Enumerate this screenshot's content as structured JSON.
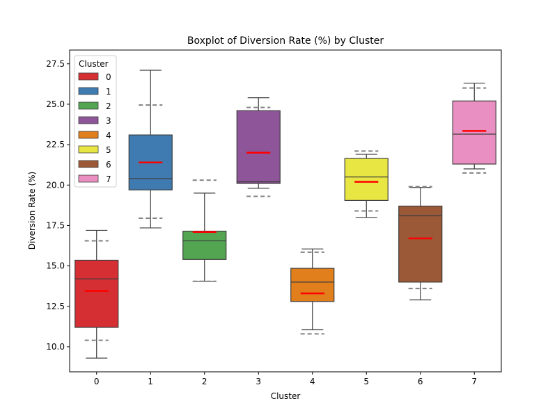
{
  "chart_data": {
    "type": "boxplot",
    "title": "Boxplot of Diversion Rate (%) by Cluster",
    "xlabel": "Cluster",
    "ylabel": "Diversion Rate (%)",
    "ylim": [
      8.45,
      28.35
    ],
    "yticks": [
      10.0,
      12.5,
      15.0,
      17.5,
      20.0,
      22.5,
      25.0,
      27.5
    ],
    "ytick_labels": [
      "10.0",
      "12.5",
      "15.0",
      "17.5",
      "20.0",
      "22.5",
      "25.0",
      "27.5"
    ],
    "legend": {
      "title": "Cluster",
      "placement": "top-left"
    },
    "series": [
      {
        "name": "0",
        "color": "#d62f33",
        "whisker_low": 9.3,
        "q1": 11.2,
        "median": 14.2,
        "q3": 15.35,
        "whisker_high": 17.2,
        "mean": 13.45,
        "ci_low": 10.4,
        "ci_high": 16.55
      },
      {
        "name": "1",
        "color": "#3f7bb0",
        "whisker_low": 17.35,
        "q1": 19.7,
        "median": 20.4,
        "q3": 23.1,
        "whisker_high": 27.1,
        "mean": 21.4,
        "ci_low": 17.95,
        "ci_high": 24.95
      },
      {
        "name": "2",
        "color": "#53a552",
        "whisker_low": 14.05,
        "q1": 15.4,
        "median": 16.55,
        "q3": 17.15,
        "whisker_high": 19.5,
        "mean": 17.1,
        "ci_low": 14.05,
        "ci_high": 20.3
      },
      {
        "name": "3",
        "color": "#8e5598",
        "whisker_low": 19.8,
        "q1": 20.1,
        "median": 20.2,
        "q3": 24.6,
        "whisker_high": 25.4,
        "mean": 22.0,
        "ci_low": 19.3,
        "ci_high": 24.8
      },
      {
        "name": "4",
        "color": "#e27f1d",
        "whisker_low": 11.05,
        "q1": 12.8,
        "median": 14.0,
        "q3": 14.85,
        "whisker_high": 16.05,
        "mean": 13.3,
        "ci_low": 10.8,
        "ci_high": 15.85
      },
      {
        "name": "5",
        "color": "#e8e642",
        "whisker_low": 18.0,
        "q1": 19.05,
        "median": 20.5,
        "q3": 21.65,
        "whisker_high": 21.9,
        "mean": 20.2,
        "ci_low": 18.4,
        "ci_high": 22.1
      },
      {
        "name": "6",
        "color": "#9b5937",
        "whisker_low": 12.9,
        "q1": 14.0,
        "median": 18.1,
        "q3": 18.7,
        "whisker_high": 19.85,
        "mean": 16.7,
        "ci_low": 13.6,
        "ci_high": 19.9
      },
      {
        "name": "7",
        "color": "#ea8fc1",
        "whisker_low": 21.0,
        "q1": 21.3,
        "median": 23.15,
        "q3": 25.2,
        "whisker_high": 26.3,
        "mean": 23.35,
        "ci_low": 20.75,
        "ci_high": 26.0
      }
    ],
    "mean_color": "#ff0000",
    "ci_color": "#808080"
  }
}
